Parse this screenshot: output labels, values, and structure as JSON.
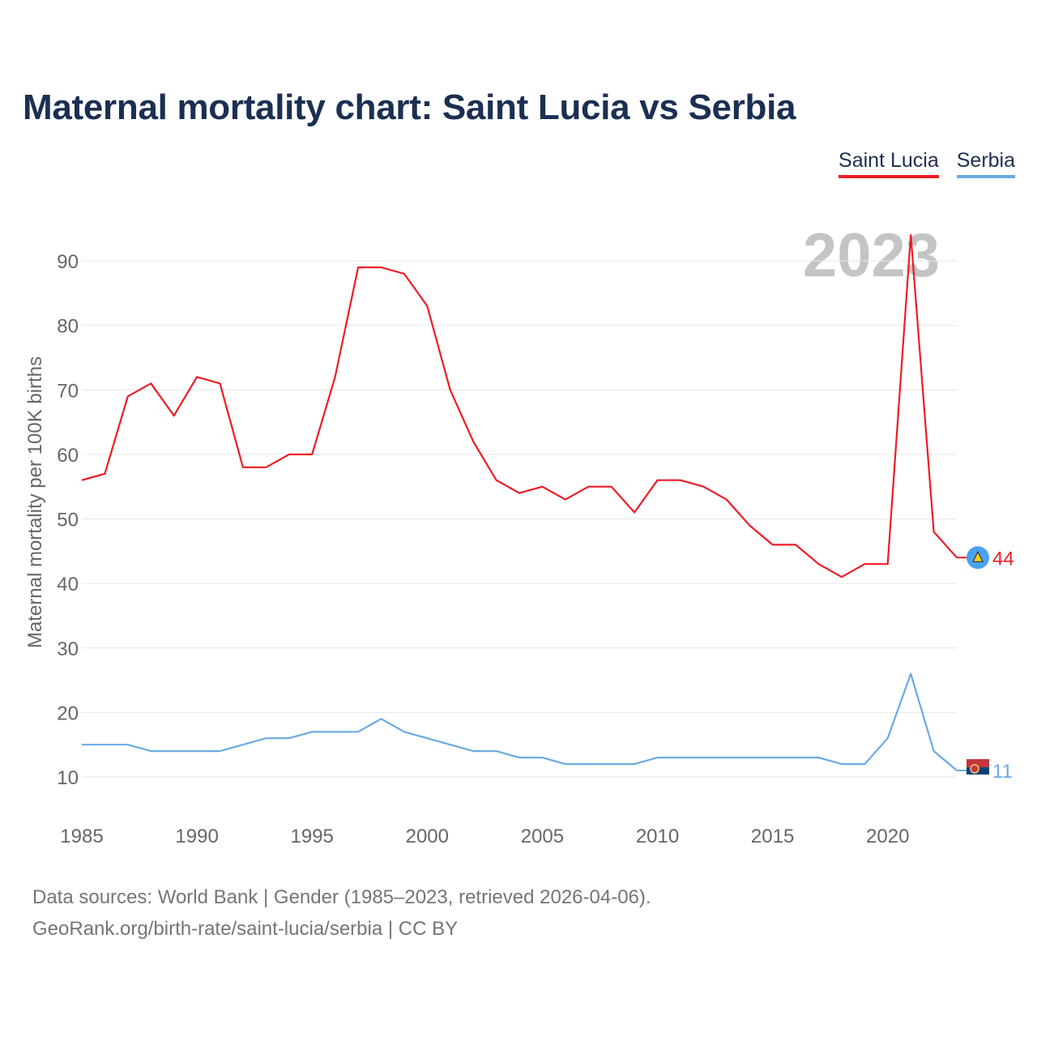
{
  "title": "Maternal mortality chart: Saint Lucia vs Serbia",
  "legend": [
    {
      "name": "Saint Lucia",
      "color": "#ee1c25"
    },
    {
      "name": "Serbia",
      "color": "#6aaae4"
    }
  ],
  "year_watermark": "2023",
  "source": {
    "line1": "Data sources: World Bank | Gender (1985–2023, retrieved 2026-04-06).",
    "line2": "GeoRank.org/birth-rate/saint-lucia/serbia | CC BY"
  },
  "colors": {
    "saint_lucia": "#ee1c25",
    "serbia": "#6aaae4",
    "grid": "#e6e6e6",
    "axis_text": "#666666",
    "title": "#1b2f52",
    "watermark": "#c4c4c4"
  },
  "chart_data": {
    "type": "line",
    "title": "Maternal mortality chart: Saint Lucia vs Serbia",
    "xlabel": "",
    "ylabel": "Maternal mortality per 100K births",
    "xlim": [
      1985,
      2023
    ],
    "ylim": [
      0,
      97
    ],
    "x_ticks": [
      1985,
      1990,
      1995,
      2000,
      2005,
      2010,
      2015,
      2020
    ],
    "y_ticks": [
      10,
      20,
      30,
      40,
      50,
      60,
      70,
      80,
      90
    ],
    "grid": true,
    "legend_position": "top-right",
    "x": [
      1985,
      1986,
      1987,
      1988,
      1989,
      1990,
      1991,
      1992,
      1993,
      1994,
      1995,
      1996,
      1997,
      1998,
      1999,
      2000,
      2001,
      2002,
      2003,
      2004,
      2005,
      2006,
      2007,
      2008,
      2009,
      2010,
      2011,
      2012,
      2013,
      2014,
      2015,
      2016,
      2017,
      2018,
      2019,
      2020,
      2021,
      2022,
      2023
    ],
    "series": [
      {
        "name": "Saint Lucia",
        "color": "#ee1c25",
        "end_label": "44",
        "values": [
          56,
          57,
          69,
          71,
          66,
          72,
          71,
          58,
          58,
          60,
          60,
          72,
          89,
          89,
          88,
          83,
          70,
          62,
          56,
          54,
          55,
          53,
          55,
          55,
          51,
          56,
          56,
          55,
          53,
          49,
          46,
          46,
          43,
          41,
          43,
          43,
          94,
          48,
          44
        ]
      },
      {
        "name": "Serbia",
        "color": "#6aaae4",
        "end_label": "11",
        "values": [
          15,
          15,
          15,
          14,
          14,
          14,
          14,
          15,
          16,
          16,
          17,
          17,
          17,
          19,
          17,
          16,
          15,
          14,
          14,
          13,
          13,
          12,
          12,
          12,
          12,
          13,
          13,
          13,
          13,
          13,
          13,
          13,
          13,
          12,
          12,
          16,
          26,
          14,
          11
        ]
      }
    ]
  }
}
